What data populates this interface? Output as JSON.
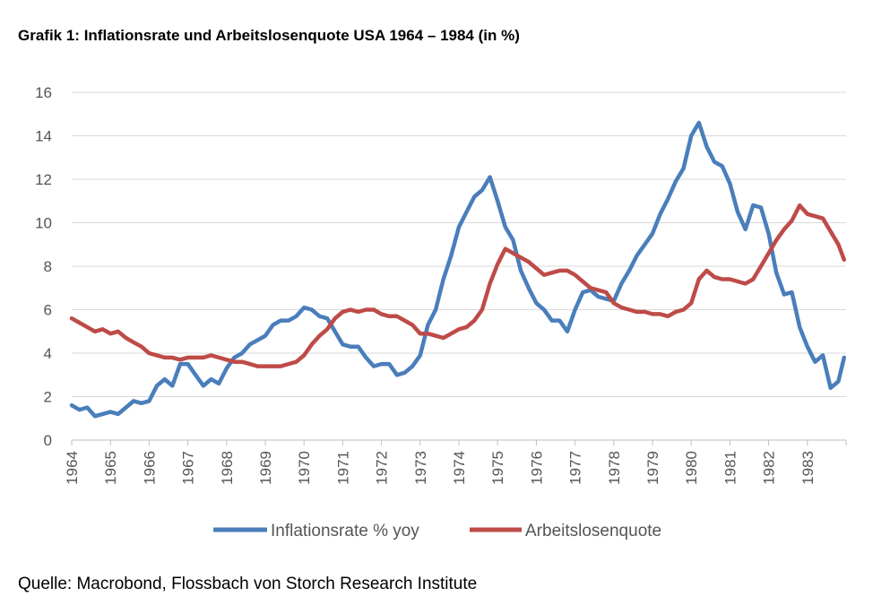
{
  "title": "Grafik 1: Inflationsrate und Arbeitslosenquote USA 1964 – 1984 (in %)",
  "source": "Quelle: Macrobond, Flossbach von Storch Research Institute",
  "colors": {
    "inflation": "#4a7ebb",
    "unemployment": "#be4b48",
    "grid": "#d9d9d9",
    "axis": "#bfbfbf"
  },
  "chart_data": {
    "type": "line",
    "title": "Grafik 1: Inflationsrate und Arbeitslosenquote USA 1964 – 1984 (in %)",
    "xlabel": "",
    "ylabel": "",
    "xlim": [
      1964,
      1984
    ],
    "ylim": [
      0,
      16
    ],
    "y_ticks": [
      "0",
      "2",
      "4",
      "6",
      "8",
      "10",
      "12",
      "14",
      "16"
    ],
    "x_ticks": [
      "1964",
      "1965",
      "1966",
      "1967",
      "1968",
      "1969",
      "1970",
      "1971",
      "1972",
      "1973",
      "1974",
      "1975",
      "1976",
      "1977",
      "1978",
      "1979",
      "1980",
      "1981",
      "1982",
      "1983"
    ],
    "grid": "horizontal",
    "legend_position": "bottom",
    "series": [
      {
        "name": "Inflationsrate % yoy",
        "color": "#4a7ebb",
        "x": [
          1964.0,
          1964.2,
          1964.4,
          1964.6,
          1964.8,
          1965.0,
          1965.2,
          1965.4,
          1965.6,
          1965.8,
          1966.0,
          1966.2,
          1966.4,
          1966.6,
          1966.8,
          1967.0,
          1967.2,
          1967.4,
          1967.6,
          1967.8,
          1968.0,
          1968.2,
          1968.4,
          1968.6,
          1968.8,
          1969.0,
          1969.2,
          1969.4,
          1969.6,
          1969.8,
          1970.0,
          1970.2,
          1970.4,
          1970.6,
          1970.8,
          1971.0,
          1971.2,
          1971.4,
          1971.6,
          1971.8,
          1972.0,
          1972.2,
          1972.4,
          1972.6,
          1972.8,
          1973.0,
          1973.2,
          1973.4,
          1973.6,
          1973.8,
          1974.0,
          1974.2,
          1974.4,
          1974.6,
          1974.8,
          1975.0,
          1975.2,
          1975.4,
          1975.6,
          1975.8,
          1976.0,
          1976.2,
          1976.4,
          1976.6,
          1976.8,
          1977.0,
          1977.2,
          1977.4,
          1977.6,
          1977.8,
          1978.0,
          1978.2,
          1978.4,
          1978.6,
          1978.8,
          1979.0,
          1979.2,
          1979.4,
          1979.6,
          1979.8,
          1980.0,
          1980.2,
          1980.4,
          1980.6,
          1980.8,
          1981.0,
          1981.2,
          1981.4,
          1981.6,
          1981.8,
          1982.0,
          1982.2,
          1982.4,
          1982.6,
          1982.8,
          1983.0,
          1983.2,
          1983.4,
          1983.6,
          1983.8,
          1983.95
        ],
        "values": [
          1.6,
          1.4,
          1.5,
          1.1,
          1.2,
          1.3,
          1.2,
          1.5,
          1.8,
          1.7,
          1.8,
          2.5,
          2.8,
          2.5,
          3.5,
          3.5,
          3.0,
          2.5,
          2.8,
          2.6,
          3.3,
          3.8,
          4.0,
          4.4,
          4.6,
          4.8,
          5.3,
          5.5,
          5.5,
          5.7,
          6.1,
          6.0,
          5.7,
          5.6,
          5.0,
          4.4,
          4.3,
          4.3,
          3.8,
          3.4,
          3.5,
          3.5,
          3.0,
          3.1,
          3.4,
          3.9,
          5.3,
          6.0,
          7.4,
          8.5,
          9.8,
          10.5,
          11.2,
          11.5,
          12.1,
          11.0,
          9.8,
          9.2,
          7.8,
          7.0,
          6.3,
          6.0,
          5.5,
          5.5,
          5.0,
          6.0,
          6.8,
          6.9,
          6.6,
          6.5,
          6.4,
          7.2,
          7.8,
          8.5,
          9.0,
          9.5,
          10.4,
          11.1,
          11.9,
          12.5,
          14.0,
          14.6,
          13.5,
          12.8,
          12.6,
          11.8,
          10.5,
          9.7,
          10.8,
          10.7,
          9.5,
          7.7,
          6.7,
          6.8,
          5.2,
          4.3,
          3.6,
          3.9,
          2.4,
          2.7,
          3.8
        ]
      },
      {
        "name": "Arbeitslosenquote",
        "color": "#be4b48",
        "x": [
          1964.0,
          1964.2,
          1964.4,
          1964.6,
          1964.8,
          1965.0,
          1965.2,
          1965.4,
          1965.6,
          1965.8,
          1966.0,
          1966.2,
          1966.4,
          1966.6,
          1966.8,
          1967.0,
          1967.2,
          1967.4,
          1967.6,
          1967.8,
          1968.0,
          1968.2,
          1968.4,
          1968.6,
          1968.8,
          1969.0,
          1969.2,
          1969.4,
          1969.6,
          1969.8,
          1970.0,
          1970.2,
          1970.4,
          1970.6,
          1970.8,
          1971.0,
          1971.2,
          1971.4,
          1971.6,
          1971.8,
          1972.0,
          1972.2,
          1972.4,
          1972.6,
          1972.8,
          1973.0,
          1973.2,
          1973.4,
          1973.6,
          1973.8,
          1974.0,
          1974.2,
          1974.4,
          1974.6,
          1974.8,
          1975.0,
          1975.2,
          1975.4,
          1975.6,
          1975.8,
          1976.0,
          1976.2,
          1976.4,
          1976.6,
          1976.8,
          1977.0,
          1977.2,
          1977.4,
          1977.6,
          1977.8,
          1978.0,
          1978.2,
          1978.4,
          1978.6,
          1978.8,
          1979.0,
          1979.2,
          1979.4,
          1979.6,
          1979.8,
          1980.0,
          1980.2,
          1980.4,
          1980.6,
          1980.8,
          1981.0,
          1981.2,
          1981.4,
          1981.6,
          1981.8,
          1982.0,
          1982.2,
          1982.4,
          1982.6,
          1982.8,
          1983.0,
          1983.2,
          1983.4,
          1983.6,
          1983.8,
          1983.95
        ],
        "values": [
          5.6,
          5.4,
          5.2,
          5.0,
          5.1,
          4.9,
          5.0,
          4.7,
          4.5,
          4.3,
          4.0,
          3.9,
          3.8,
          3.8,
          3.7,
          3.8,
          3.8,
          3.8,
          3.9,
          3.8,
          3.7,
          3.6,
          3.6,
          3.5,
          3.4,
          3.4,
          3.4,
          3.4,
          3.5,
          3.6,
          3.9,
          4.4,
          4.8,
          5.1,
          5.6,
          5.9,
          6.0,
          5.9,
          6.0,
          6.0,
          5.8,
          5.7,
          5.7,
          5.5,
          5.3,
          4.9,
          4.9,
          4.8,
          4.7,
          4.9,
          5.1,
          5.2,
          5.5,
          6.0,
          7.2,
          8.1,
          8.8,
          8.6,
          8.4,
          8.2,
          7.9,
          7.6,
          7.7,
          7.8,
          7.8,
          7.6,
          7.3,
          7.0,
          6.9,
          6.8,
          6.3,
          6.1,
          6.0,
          5.9,
          5.9,
          5.8,
          5.8,
          5.7,
          5.9,
          6.0,
          6.3,
          7.4,
          7.8,
          7.5,
          7.4,
          7.4,
          7.3,
          7.2,
          7.4,
          8.0,
          8.6,
          9.2,
          9.7,
          10.1,
          10.8,
          10.4,
          10.3,
          10.2,
          9.6,
          9.0,
          8.3
        ]
      }
    ]
  }
}
